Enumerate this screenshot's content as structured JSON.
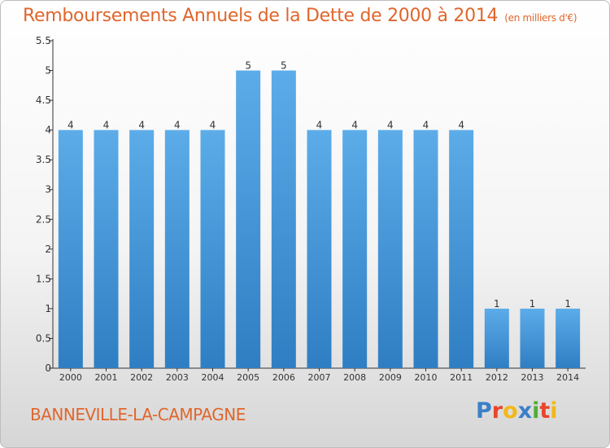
{
  "title": "Remboursements Annuels de la Dette de 2000 à 2014",
  "subtitle": "(en milliers d'€)",
  "town": "BANNEVILLE-LA-CAMPAGNE",
  "logo": {
    "text": "Proxiti",
    "letters": [
      {
        "char": "P",
        "color": "#3a7fc8"
      },
      {
        "char": "r",
        "color": "#e8462b"
      },
      {
        "char": "o",
        "color": "#f2b818"
      },
      {
        "char": "x",
        "color": "#3a7fc8"
      },
      {
        "char": "i",
        "color": "#4fae35"
      },
      {
        "char": "t",
        "color": "#e8462b"
      },
      {
        "char": "i",
        "color": "#f2b818"
      }
    ]
  },
  "colors": {
    "title": "#e0662c",
    "bar_top": "#5cace9",
    "bar_bottom": "#2f7ec3",
    "axis": "#333333"
  },
  "chart_data": {
    "type": "bar",
    "categories": [
      "2000",
      "2001",
      "2002",
      "2003",
      "2004",
      "2005",
      "2006",
      "2007",
      "2008",
      "2009",
      "2010",
      "2011",
      "2012",
      "2013",
      "2014"
    ],
    "values": [
      4,
      4,
      4,
      4,
      4,
      5,
      5,
      4,
      4,
      4,
      4,
      4,
      1,
      1,
      1
    ],
    "data_labels": [
      "4",
      "4",
      "4",
      "4",
      "4",
      "5",
      "5",
      "4",
      "4",
      "4",
      "4",
      "4",
      "1",
      "1",
      "1"
    ],
    "ylim": [
      0,
      5.5
    ],
    "yticks": [
      0,
      0.5,
      1,
      1.5,
      2,
      2.5,
      3,
      3.5,
      4,
      4.5,
      5,
      5.5
    ],
    "ytick_labels": [
      "0",
      "0.5",
      "1",
      "1.5",
      "2",
      "2.5",
      "3",
      "3.5",
      "4",
      "4.5",
      "5",
      "5.5"
    ],
    "grid": false,
    "legend": "none"
  }
}
